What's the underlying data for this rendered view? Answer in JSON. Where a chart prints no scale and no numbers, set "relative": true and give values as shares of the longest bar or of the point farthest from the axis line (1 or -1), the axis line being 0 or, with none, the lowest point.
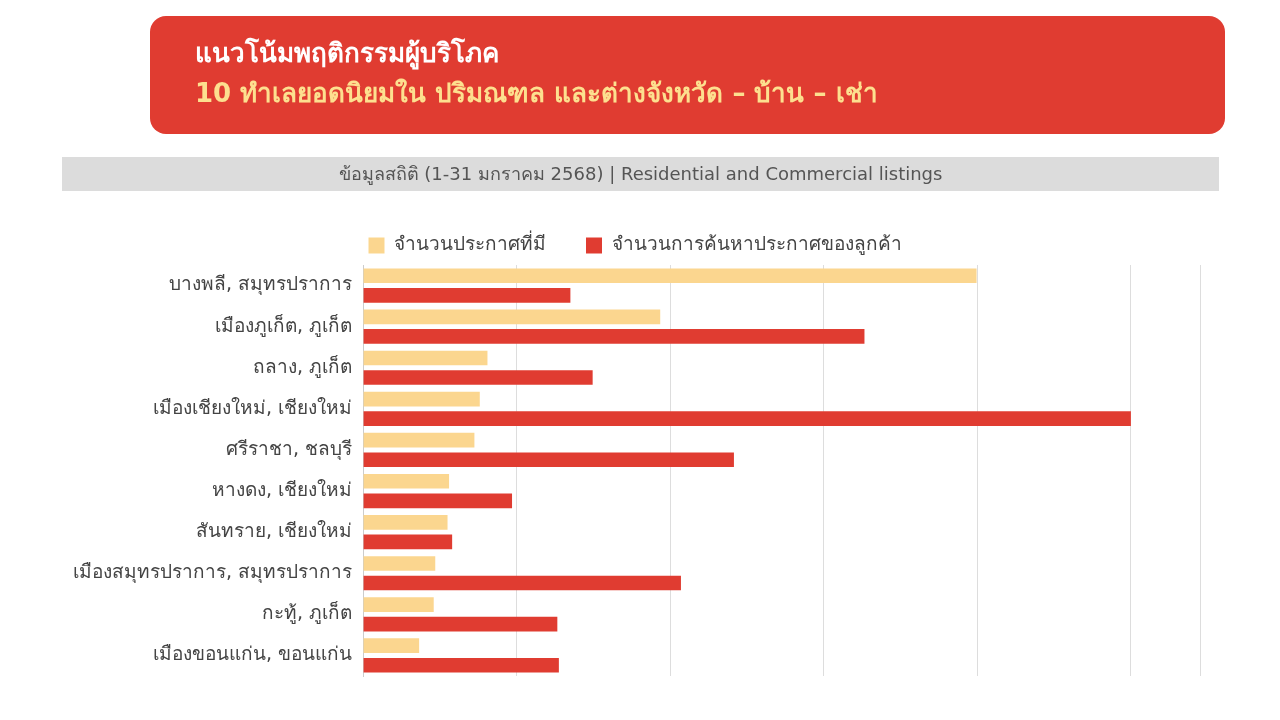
{
  "chart_data": {
    "type": "bar",
    "orientation": "horizontal",
    "relative": true,
    "title": "แนวโน้มพฤติกรรมผู้บริโภค",
    "subtitle": "10 ทำเลยอดนิยมใน ปริมณฑล และต่างจังหวัด – บ้าน – เช่า",
    "annotations": [
      "ข้อมูลสถิติ (1-31 มกราคม 2568) | Residential and Commercial listings"
    ],
    "categories": [
      "บางพลี, สมุทรปราการ",
      "เมืองภูเก็ต, ภูเก็ต",
      "ถลาง, ภูเก็ต",
      "เมืองเชียงใหม่, เชียงใหม่",
      "ศรีราชา, ชลบุรี",
      "หางดง, เชียงใหม่",
      "สันทราย, เชียงใหม่",
      "เมืองสมุทรปราการ, สมุทรปราการ",
      "กะทู้, ภูเก็ต",
      "เมืองขอนแก่น, ขอนแก่น"
    ],
    "series": [
      {
        "name": "จำนวนประกาศที่มี",
        "color": "#fbd68f",
        "values": [
          0.799,
          0.387,
          0.162,
          0.152,
          0.145,
          0.112,
          0.11,
          0.094,
          0.092,
          0.073
        ]
      },
      {
        "name": "จำนวนการค้นหาประกาศของลูกค้า",
        "color": "#e03c31",
        "values": [
          0.27,
          0.653,
          0.299,
          1.0,
          0.483,
          0.194,
          0.116,
          0.414,
          0.253,
          0.255
        ]
      }
    ],
    "legend": "top",
    "grid": "x"
  }
}
